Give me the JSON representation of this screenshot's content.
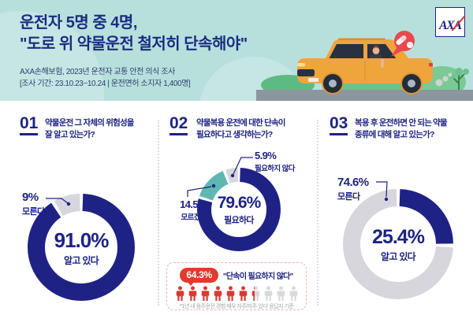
{
  "header": {
    "title_line1": "운전자 5명 중 4명,",
    "title_line2": "\"도로 위 약물운전 철저히 단속해야\"",
    "subtitle_line1": "AXA손해보험, 2023년 운전자 교통 안전 의식 조사",
    "subtitle_line2": "[조사 기간: 23.10.23~10.24 | 운전면허 소지자 1,400명]",
    "logo_text": "AXA"
  },
  "colors": {
    "navy": "#1e2382",
    "teal_bg": "#b7e0dc",
    "segment_navy": "#1f2285",
    "segment_teal": "#5fb7b2",
    "segment_gray": "#d6d6dc",
    "red": "#e23a2e",
    "person_gray": "#d9dade"
  },
  "chart_data": [
    {
      "type": "pie",
      "title": "약물운전 그 자체의 위험성을 잘 알고 있는가?",
      "labels": [
        "알고 있다",
        "모른다"
      ],
      "values": [
        91.0,
        9.0
      ],
      "colors": [
        "#1f2285",
        "#d6d6dc"
      ],
      "center_text": "91.0% 알고 있다",
      "legend_position": "callout"
    },
    {
      "type": "pie",
      "title": "약물복용 운전에 대한 단속이 필요하다고 생각하는가?",
      "labels": [
        "필요하다",
        "모르겠다",
        "필요하지 않다"
      ],
      "values": [
        79.6,
        14.5,
        5.9
      ],
      "colors": [
        "#1f2285",
        "#5fb7b2",
        "#d6d6dc"
      ],
      "center_text": "79.6% 필요하다",
      "legend_position": "callout"
    },
    {
      "type": "pie",
      "title": "복용 후 운전하면 안 되는 약물 종류에 대해 알고 있는가?",
      "labels": [
        "알고 있다",
        "모른다"
      ],
      "values": [
        25.4,
        74.6
      ],
      "colors": [
        "#1f2285",
        "#d6d6dc"
      ],
      "center_text": "25.4% 알고 있다",
      "legend_position": "callout"
    }
  ],
  "sections": [
    {
      "number": "01",
      "question_lines": [
        "약물운전 그 자체의 위험성을",
        "잘 알고 있는가?"
      ],
      "center_value": "91.0%",
      "center_label": "알고 있다",
      "callouts": [
        {
          "value": "9%",
          "label": "모른다"
        }
      ]
    },
    {
      "number": "02",
      "question_lines": [
        "약물복용 운전에 대한 단속이",
        "필요하다고 생각하는가?"
      ],
      "center_value": "79.6%",
      "center_label": "필요하다",
      "callouts": [
        {
          "value": "5.9%",
          "label": "필요하지 않다"
        },
        {
          "value": "14.5%",
          "label": "모르겠다"
        }
      ]
    },
    {
      "number": "03",
      "question_lines": [
        "복용 후 운전하면 안 되는 약물",
        "종류에 대해 알고 있는가?"
      ],
      "center_value": "25.4%",
      "center_label": "알고 있다",
      "callouts": [
        {
          "value": "74.6%",
          "label": "모른다"
        }
      ]
    }
  ],
  "highlight_box": {
    "badge": "64.3%",
    "quote": "\"단속이 필요하지 않다\"",
    "footnote": "*'1년 내 음주운전 경험 매우 자주/자주 있다' 응답자 기준",
    "icons_total": 10,
    "icons_filled": 6.43
  }
}
